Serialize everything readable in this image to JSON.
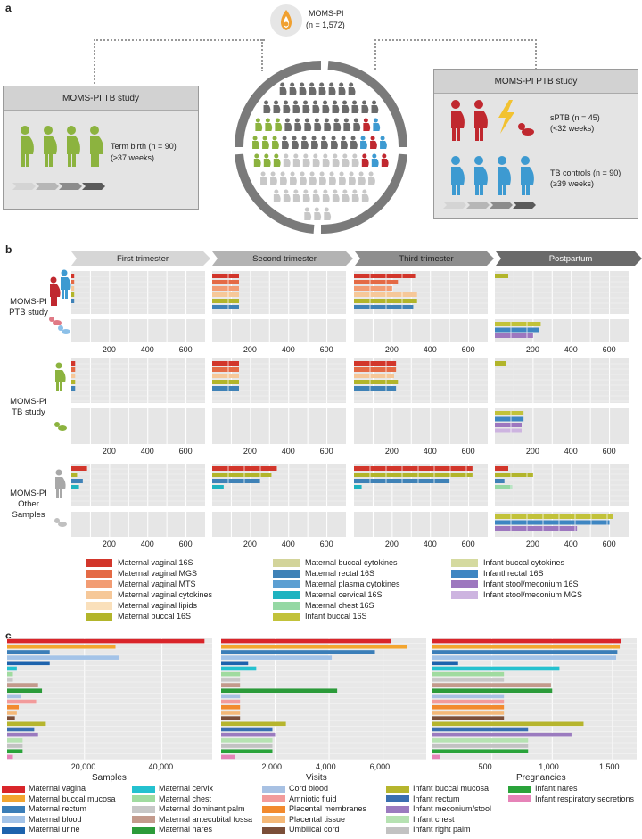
{
  "panel_a": {
    "label": "a",
    "center_title": "MOMS-PI",
    "center_n": "(n = 1,572)",
    "tb_box": {
      "title": "MOMS-PI TB study",
      "line1": "Term birth (n = 90)",
      "line2": "(≥37 weeks)"
    },
    "ptb_box": {
      "title": "MOMS-PI PTB study",
      "sptb1": "sPTB (n = 45)",
      "sptb2": "(<32 weeks)",
      "tb1": "TB controls (n = 90)",
      "tb2": "(≥39 weeks)"
    },
    "colors": {
      "green": "#8cb33f",
      "red": "#c0282f",
      "blue": "#3d9ad1",
      "dark": "#6b6b6b",
      "light": "#c8c8c8"
    }
  },
  "panel_b": {
    "label": "b",
    "headers": [
      "First trimester",
      "Second trimester",
      "Third trimester",
      "Postpartum"
    ],
    "rows": [
      {
        "label_lines": [
          "MOMS-PI",
          "PTB study"
        ]
      },
      {
        "label_lines": [
          "MOMS-PI",
          "TB study"
        ]
      },
      {
        "label_lines": [
          "MOMS-PI",
          "Other",
          "Samples"
        ]
      }
    ],
    "ticks": [
      "200",
      "400",
      "600"
    ],
    "legend": [
      {
        "label": "Maternal vaginal 16S",
        "color": "#d2362b"
      },
      {
        "label": "Maternal vaginal MGS",
        "color": "#e46a45"
      },
      {
        "label": "Maternal vaginal MTS",
        "color": "#f29c73"
      },
      {
        "label": "Maternal vaginal cytokines",
        "color": "#f6c899"
      },
      {
        "label": "Maternal vaginal lipids",
        "color": "#fae0bb"
      },
      {
        "label": "Maternal buccal 16S",
        "color": "#b2b52b"
      },
      {
        "label": "Maternal buccal cytokines",
        "color": "#d3d49a"
      },
      {
        "label": "Maternal rectal 16S",
        "color": "#3f82b7"
      },
      {
        "label": "Maternal plasma cytokines",
        "color": "#5c9fd2"
      },
      {
        "label": "Maternal cervical 16S",
        "color": "#1fb3c0"
      },
      {
        "label": "Maternal chest 16S",
        "color": "#95d8a4"
      },
      {
        "label": "Infant buccal 16S",
        "color": "#c2c23a"
      },
      {
        "label": "Infant buccal cytokines",
        "color": "#d5da9f"
      },
      {
        "label": "Infantl rectal 16S",
        "color": "#3e86c2"
      },
      {
        "label": "Infant stool/meconium 16S",
        "color": "#9d77bf"
      },
      {
        "label": "Infant stool/meconium MGS",
        "color": "#cdb4e0"
      }
    ],
    "chart_data": [
      {
        "type": "bar",
        "group": "PTB study",
        "period": "First trimester",
        "series": [
          {
            "name": "Maternal vaginal 16S",
            "values": [
              15
            ]
          },
          {
            "name": "Maternal vaginal MGS",
            "values": [
              15
            ]
          },
          {
            "name": "Maternal vaginal cytokines",
            "values": [
              15
            ]
          },
          {
            "name": "Maternal buccal 16S",
            "values": [
              15
            ]
          },
          {
            "name": "Maternal rectal 16S",
            "values": [
              15
            ]
          }
        ]
      },
      {
        "type": "bar",
        "group": "PTB study",
        "period": "Second trimester",
        "series": [
          {
            "name": "Maternal vaginal 16S",
            "values": [
              140
            ]
          },
          {
            "name": "Maternal vaginal MGS",
            "values": [
              140
            ]
          },
          {
            "name": "Maternal vaginal MTS",
            "values": [
              140
            ]
          },
          {
            "name": "Maternal vaginal cytokines",
            "values": [
              140
            ]
          },
          {
            "name": "Maternal buccal 16S",
            "values": [
              140
            ]
          },
          {
            "name": "Maternal rectal 16S",
            "values": [
              140
            ]
          }
        ]
      },
      {
        "type": "bar",
        "group": "PTB study",
        "period": "Third trimester",
        "series": [
          {
            "name": "Maternal vaginal 16S",
            "values": [
              320
            ]
          },
          {
            "name": "Maternal vaginal MGS",
            "values": [
              230
            ]
          },
          {
            "name": "Maternal vaginal MTS",
            "values": [
              200
            ]
          },
          {
            "name": "Maternal vaginal cytokines",
            "values": [
              330
            ]
          },
          {
            "name": "Maternal buccal 16S",
            "values": [
              330
            ]
          },
          {
            "name": "Maternal rectal 16S",
            "values": [
              310
            ]
          }
        ]
      },
      {
        "type": "bar",
        "group": "PTB study",
        "period": "Postpartum",
        "series": [
          {
            "name": "Maternal buccal 16S",
            "values": [
              70
            ]
          },
          {
            "name": "Infant buccal 16S",
            "values": [
              240
            ]
          },
          {
            "name": "Infantl rectal 16S",
            "values": [
              230
            ]
          },
          {
            "name": "Infant stool/meconium 16S",
            "values": [
              200
            ]
          }
        ]
      },
      {
        "type": "bar",
        "group": "TB study",
        "period": "First trimester",
        "series": [
          {
            "name": "Maternal vaginal 16S",
            "values": [
              20
            ]
          },
          {
            "name": "Maternal vaginal MGS",
            "values": [
              20
            ]
          },
          {
            "name": "Maternal vaginal cytokines",
            "values": [
              20
            ]
          },
          {
            "name": "Maternal buccal 16S",
            "values": [
              20
            ]
          },
          {
            "name": "Maternal rectal 16S",
            "values": [
              20
            ]
          }
        ]
      },
      {
        "type": "bar",
        "group": "TB study",
        "period": "Second trimester",
        "series": [
          {
            "name": "Maternal vaginal 16S",
            "values": [
              140
            ]
          },
          {
            "name": "Maternal vaginal MGS",
            "values": [
              140
            ]
          },
          {
            "name": "Maternal vaginal cytokines",
            "values": [
              140
            ]
          },
          {
            "name": "Maternal buccal 16S",
            "values": [
              140
            ]
          },
          {
            "name": "Maternal rectal 16S",
            "values": [
              140
            ]
          }
        ]
      },
      {
        "type": "bar",
        "group": "TB study",
        "period": "Third trimester",
        "series": [
          {
            "name": "Maternal vaginal 16S",
            "values": [
              220
            ]
          },
          {
            "name": "Maternal vaginal MGS",
            "values": [
              220
            ]
          },
          {
            "name": "Maternal vaginal cytokines",
            "values": [
              210
            ]
          },
          {
            "name": "Maternal buccal 16S",
            "values": [
              230
            ]
          },
          {
            "name": "Maternal rectal 16S",
            "values": [
              220
            ]
          }
        ]
      },
      {
        "type": "bar",
        "group": "TB study",
        "period": "Postpartum",
        "series": [
          {
            "name": "Maternal buccal 16S",
            "values": [
              60
            ]
          },
          {
            "name": "Infant buccal 16S",
            "values": [
              150
            ]
          },
          {
            "name": "Infantl rectal 16S",
            "values": [
              150
            ]
          },
          {
            "name": "Infant stool/meconium 16S",
            "values": [
              140
            ]
          },
          {
            "name": "Infant stool/meconium MGS",
            "values": [
              140
            ]
          }
        ]
      },
      {
        "type": "bar",
        "group": "Other Samples",
        "period": "First trimester",
        "series": [
          {
            "name": "Maternal vaginal 16S",
            "values": [
              85
            ]
          },
          {
            "name": "Maternal buccal 16S",
            "values": [
              30
            ]
          },
          {
            "name": "Maternal rectal 16S",
            "values": [
              60
            ]
          },
          {
            "name": "Maternal cervical 16S",
            "values": [
              40
            ]
          }
        ]
      },
      {
        "type": "bar",
        "group": "Other Samples",
        "period": "Second trimester",
        "series": [
          {
            "name": "Maternal vaginal 16S",
            "values": [
              340
            ]
          },
          {
            "name": "Maternal buccal 16S",
            "values": [
              310
            ]
          },
          {
            "name": "Maternal rectal 16S",
            "values": [
              250
            ]
          },
          {
            "name": "Maternal cervical 16S",
            "values": [
              60
            ]
          }
        ]
      },
      {
        "type": "bar",
        "group": "Other Samples",
        "period": "Third trimester",
        "series": [
          {
            "name": "Maternal vaginal 16S",
            "values": [
              620
            ]
          },
          {
            "name": "Maternal buccal 16S",
            "values": [
              620
            ]
          },
          {
            "name": "Maternal rectal 16S",
            "values": [
              500
            ]
          },
          {
            "name": "Maternal cervical 16S",
            "values": [
              40
            ]
          }
        ]
      },
      {
        "type": "bar",
        "group": "Other Samples",
        "period": "Postpartum",
        "series": [
          {
            "name": "Maternal vaginal 16S",
            "values": [
              70
            ]
          },
          {
            "name": "Maternal buccal 16S",
            "values": [
              200
            ]
          },
          {
            "name": "Maternal rectal 16S",
            "values": [
              50
            ]
          },
          {
            "name": "Maternal chest 16S",
            "values": [
              90
            ]
          },
          {
            "name": "Infant buccal 16S",
            "values": [
              620
            ]
          },
          {
            "name": "Infantl rectal 16S",
            "values": [
              600
            ]
          },
          {
            "name": "Infant stool/meconium 16S",
            "values": [
              430
            ]
          }
        ]
      }
    ]
  },
  "panel_c": {
    "label": "c",
    "legend": [
      {
        "label": "Maternal vagina",
        "color": "#d9252a"
      },
      {
        "label": "Maternal buccal mucosa",
        "color": "#f3a52f"
      },
      {
        "label": "Maternal rectum",
        "color": "#3b7eb8"
      },
      {
        "label": "Maternal blood",
        "color": "#a3c3e8"
      },
      {
        "label": "Maternal urine",
        "color": "#1d63ad"
      },
      {
        "label": "Maternal cervix",
        "color": "#24c1cf"
      },
      {
        "label": "Maternal chest",
        "color": "#a0dba0"
      },
      {
        "label": "Maternal dominant palm",
        "color": "#c7c7c7"
      },
      {
        "label": "Maternal antecubital fossa",
        "color": "#c39a8c"
      },
      {
        "label": "Maternal nares",
        "color": "#2c9b3a"
      },
      {
        "label": "Cord blood",
        "color": "#a8c1e3"
      },
      {
        "label": "Amniotic fluid",
        "color": "#f29b9b"
      },
      {
        "label": "Placental membranes",
        "color": "#f28a2e"
      },
      {
        "label": "Placental tissue",
        "color": "#f4b877"
      },
      {
        "label": "Umbilical cord",
        "color": "#7b4e38"
      },
      {
        "label": "Infant buccal mucosa",
        "color": "#b6b52d"
      },
      {
        "label": "Infant rectum",
        "color": "#3a6fb0"
      },
      {
        "label": "Infant meconium/stool",
        "color": "#9b7bbf"
      },
      {
        "label": "Infant chest",
        "color": "#b6e2b2"
      },
      {
        "label": "Infant right palm",
        "color": "#c2c2c2"
      },
      {
        "label": "Infant nares",
        "color": "#2aa33a"
      },
      {
        "label": "Infant respiratory secretions",
        "color": "#e683b8"
      }
    ],
    "chart_data": [
      {
        "type": "bar",
        "xlabel": "Samples",
        "xlim": [
          0,
          53000
        ],
        "ticks": [
          "20,000",
          "40,000"
        ],
        "categories": [
          "Maternal vagina",
          "Maternal buccal mucosa",
          "Maternal rectum",
          "Maternal blood",
          "Maternal urine",
          "Maternal cervix",
          "Maternal chest",
          "Maternal dominant palm",
          "Maternal antecubital fossa",
          "Maternal nares",
          "Cord blood",
          "Amniotic fluid",
          "Placental membranes",
          "Placental tissue",
          "Umbilical cord",
          "Infant buccal mucosa",
          "Infant rectum",
          "Infant meconium/stool",
          "Infant chest",
          "Infant right palm",
          "Infant nares",
          "Infant respiratory secretions"
        ],
        "values": [
          51000,
          28000,
          11000,
          29000,
          11000,
          2500,
          1500,
          1500,
          8000,
          9000,
          3500,
          7500,
          3000,
          2500,
          2000,
          10000,
          7000,
          8000,
          4000,
          4000,
          4000,
          1500
        ]
      },
      {
        "type": "bar",
        "xlabel": "Visits",
        "xlim": [
          0,
          7600
        ],
        "ticks": [
          "2,000",
          "4,000",
          "6,000"
        ],
        "categories": [
          "Maternal vagina",
          "Maternal buccal mucosa",
          "Maternal rectum",
          "Maternal blood",
          "Maternal urine",
          "Maternal cervix",
          "Maternal chest",
          "Maternal dominant palm",
          "Maternal antecubital fossa",
          "Maternal nares",
          "Cord blood",
          "Amniotic fluid",
          "Placental membranes",
          "Placental tissue",
          "Umbilical cord",
          "Infant buccal mucosa",
          "Infant rectum",
          "Infant meconium/stool",
          "Infant chest",
          "Infant right palm",
          "Infant nares",
          "Infant respiratory secretions"
        ],
        "values": [
          6300,
          6900,
          5700,
          4100,
          1000,
          1300,
          700,
          700,
          700,
          4300,
          700,
          700,
          700,
          700,
          700,
          2400,
          1900,
          2000,
          1900,
          1900,
          1900,
          500
        ]
      },
      {
        "type": "bar",
        "xlabel": "Pregnancies",
        "xlim": [
          0,
          1700
        ],
        "ticks": [
          "500",
          "1,000",
          "1,500"
        ],
        "categories": [
          "Maternal vagina",
          "Maternal buccal mucosa",
          "Maternal rectum",
          "Maternal blood",
          "Maternal urine",
          "Maternal cervix",
          "Maternal chest",
          "Maternal dominant palm",
          "Maternal antecubital fossa",
          "Maternal nares",
          "Cord blood",
          "Amniotic fluid",
          "Placental membranes",
          "Placental tissue",
          "Umbilical cord",
          "Infant buccal mucosa",
          "Infant rectum",
          "Infant meconium/stool",
          "Infant chest",
          "Infant right palm",
          "Infant nares",
          "Infant respiratory secretions"
        ],
        "values": [
          1570,
          1560,
          1540,
          1530,
          220,
          1060,
          600,
          600,
          990,
          1000,
          600,
          600,
          600,
          600,
          600,
          1260,
          800,
          1160,
          800,
          800,
          800,
          70
        ]
      }
    ]
  }
}
